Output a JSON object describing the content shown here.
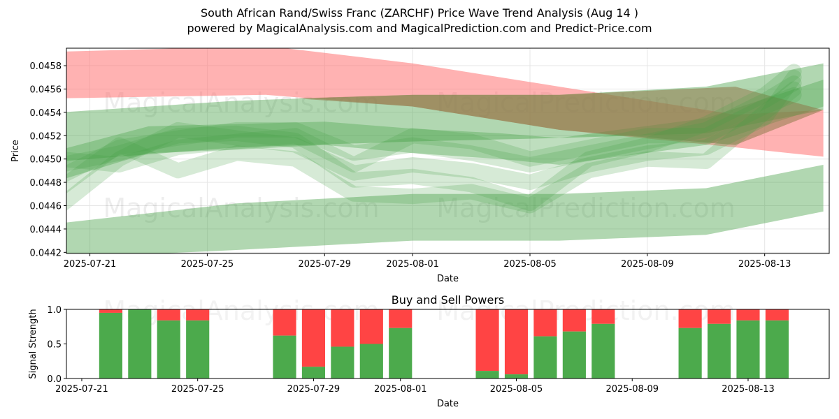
{
  "header": {
    "title": "South African Rand/Swiss Franc (ZARCHF) Price Wave Trend Analysis (Aug 14 )",
    "subtitle": "powered by MagicalAnalysis.com and MagicalPrediction.com and Predict-Price.com"
  },
  "watermarks": [
    "MagicalAnalysis.com",
    "MagicalPrediction.com"
  ],
  "colors": {
    "red_band": "#ff6666",
    "green_band": "#44a044",
    "brown_overlap": "#8f7a4a",
    "buy_bar": "#4caa4c",
    "sell_bar": "#ff4444"
  },
  "chart_data": [
    {
      "type": "area",
      "title": "",
      "xlabel": "Date",
      "ylabel": "Price",
      "x_ticks": [
        "2025-07-21",
        "2025-07-25",
        "2025-07-29",
        "2025-08-01",
        "2025-08-05",
        "2025-08-09",
        "2025-08-13"
      ],
      "y_ticks": [
        "0.0442",
        "0.0444",
        "0.0446",
        "0.0448",
        "0.0450",
        "0.0452",
        "0.0454",
        "0.0456",
        "0.0458"
      ],
      "ylim": [
        0.04419,
        0.04595
      ],
      "xlim": [
        "2025-07-20",
        "2025-08-15"
      ],
      "grid": true,
      "bands": [
        {
          "color": "red",
          "x": [
            "2025-07-20",
            "2025-07-27",
            "2025-08-01",
            "2025-08-06",
            "2025-08-12",
            "2025-08-15"
          ],
          "upper": [
            0.04592,
            0.04597,
            0.04582,
            0.04562,
            0.04538,
            0.04542
          ],
          "lower": [
            0.04552,
            0.04555,
            0.04545,
            0.04525,
            0.0451,
            0.04502
          ]
        },
        {
          "color": "green",
          "x": [
            "2025-07-20",
            "2025-07-26",
            "2025-08-01",
            "2025-08-06",
            "2025-08-11",
            "2025-08-15"
          ],
          "upper": [
            0.0454,
            0.0455,
            0.04555,
            0.04555,
            0.04562,
            0.04582
          ],
          "lower": [
            0.04498,
            0.0451,
            0.04515,
            0.04518,
            0.04522,
            0.04542
          ]
        },
        {
          "color": "green",
          "x": [
            "2025-07-20",
            "2025-07-26",
            "2025-08-01",
            "2025-08-06",
            "2025-08-11",
            "2025-08-15"
          ],
          "upper": [
            0.04445,
            0.04462,
            0.0447,
            0.0447,
            0.04475,
            0.04495
          ],
          "lower": [
            0.04415,
            0.04422,
            0.0443,
            0.0443,
            0.04435,
            0.04455
          ]
        },
        {
          "color": "green",
          "x": [
            "2025-07-20",
            "2025-07-23",
            "2025-07-26",
            "2025-07-29",
            "2025-08-01",
            "2025-08-04",
            "2025-08-06",
            "2025-08-08",
            "2025-08-11",
            "2025-08-15"
          ],
          "upper": [
            0.04508,
            0.04528,
            0.0453,
            0.04532,
            0.04526,
            0.04522,
            0.04518,
            0.04525,
            0.04535,
            0.04568
          ],
          "lower": [
            0.04482,
            0.04505,
            0.04508,
            0.04512,
            0.04505,
            0.045,
            0.04495,
            0.04502,
            0.04512,
            0.04545
          ]
        }
      ]
    },
    {
      "type": "bar",
      "title": "Buy and Sell Powers",
      "xlabel": "Date",
      "ylabel": "Signal Strength",
      "x_ticks": [
        "2025-07-21",
        "2025-07-25",
        "2025-07-29",
        "2025-08-01",
        "2025-08-05",
        "2025-08-09",
        "2025-08-13"
      ],
      "y_ticks": [
        "0.0",
        "0.5",
        "1.0"
      ],
      "ylim": [
        0,
        1
      ],
      "grid": false,
      "series": [
        {
          "name": "Buy",
          "color": "green"
        },
        {
          "name": "Sell",
          "color": "red"
        }
      ],
      "categories": [
        "2025-07-22",
        "2025-07-23",
        "2025-07-24",
        "2025-07-25",
        "2025-07-28",
        "2025-07-29",
        "2025-07-30",
        "2025-07-31",
        "2025-08-01",
        "2025-08-04",
        "2025-08-05",
        "2025-08-06",
        "2025-08-07",
        "2025-08-08",
        "2025-08-11",
        "2025-08-12",
        "2025-08-13",
        "2025-08-14"
      ],
      "buy": [
        0.95,
        1.0,
        0.84,
        0.84,
        0.62,
        0.17,
        0.46,
        0.5,
        0.73,
        0.11,
        0.06,
        0.61,
        0.68,
        0.79,
        0.73,
        0.79,
        0.84,
        0.84
      ]
    }
  ]
}
